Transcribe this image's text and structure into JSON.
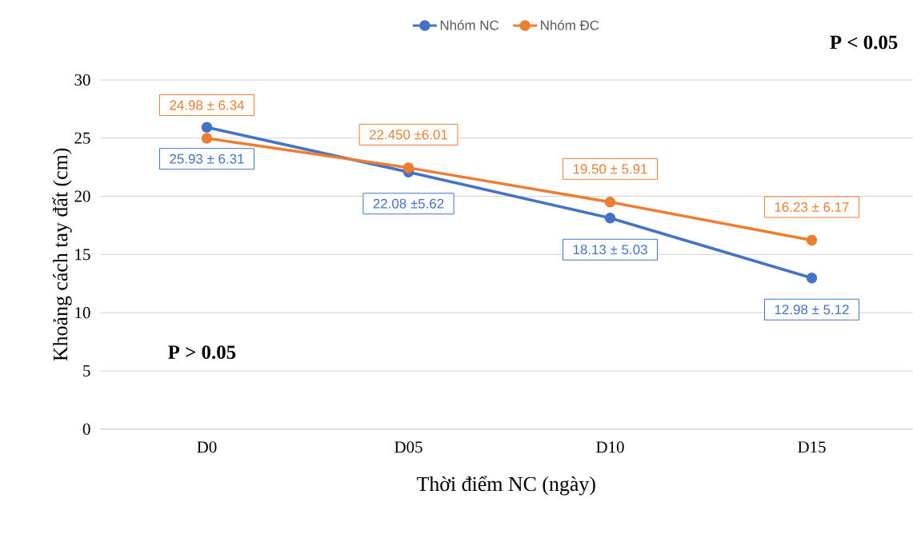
{
  "chart_data": {
    "type": "line",
    "xlabel": "Thời điểm NC (ngày)",
    "ylabel": "Khoảng cách tay đất (cm)",
    "categories": [
      "D0",
      "D05",
      "D10",
      "D15"
    ],
    "series": [
      {
        "name": "Nhóm NC",
        "color": "#4472c4",
        "values": [
          25.93,
          22.08,
          18.13,
          12.98
        ],
        "value_labels": [
          "25.93 ± 6.31",
          "22.08 ±5.62",
          "18.13 ± 5.03",
          "12.98 ± 5.12"
        ]
      },
      {
        "name": "Nhóm ĐC",
        "color": "#ed7d31",
        "values": [
          24.98,
          22.45,
          19.5,
          16.23
        ],
        "value_labels": [
          "24.98 ± 6.34",
          "22.450 ±6.01",
          "19.50 ± 5.91",
          "16.23 ± 6.17"
        ]
      }
    ],
    "ylim": [
      0,
      30
    ],
    "yticks": [
      0,
      5,
      10,
      15,
      20,
      25,
      30
    ],
    "grid": "y",
    "legend": "top",
    "marker": "circle",
    "annotations": [
      "P > 0.05",
      "P < 0.05"
    ]
  }
}
